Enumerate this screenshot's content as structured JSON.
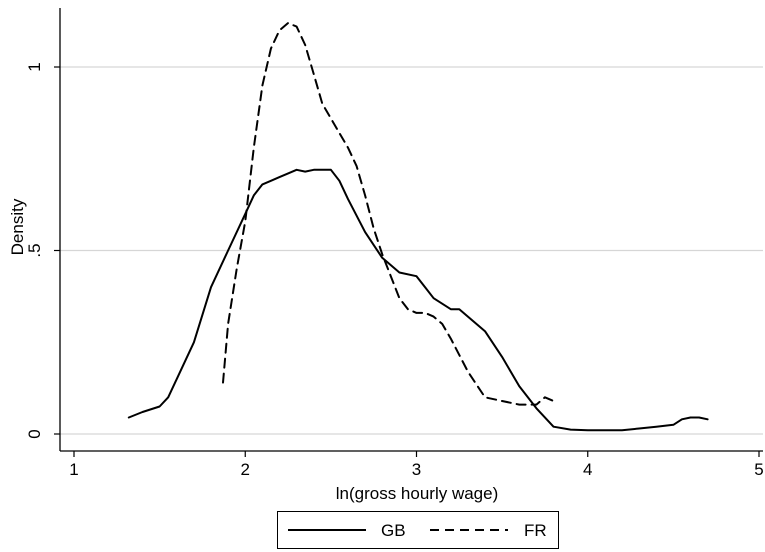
{
  "chart_data": {
    "type": "line",
    "title": "",
    "xlabel": "ln(gross hourly wage)",
    "ylabel": "Density",
    "xlim": [
      1,
      5
    ],
    "ylim": [
      0,
      1.15
    ],
    "xticks": [
      1,
      2,
      3,
      4,
      5
    ],
    "xtick_labels": [
      "1",
      "2",
      "3",
      "4",
      "5"
    ],
    "yticks": [
      0,
      0.5,
      1
    ],
    "ytick_labels": [
      "0",
      ".5",
      "1"
    ],
    "grid": "horizontal",
    "legend_position": "bottom",
    "series": [
      {
        "name": "GB",
        "style": "solid",
        "color": "#000000",
        "x": [
          1.32,
          1.4,
          1.5,
          1.55,
          1.6,
          1.7,
          1.8,
          1.9,
          2.0,
          2.05,
          2.1,
          2.15,
          2.2,
          2.25,
          2.3,
          2.35,
          2.4,
          2.45,
          2.5,
          2.55,
          2.6,
          2.7,
          2.8,
          2.9,
          3.0,
          3.05,
          3.1,
          3.2,
          3.25,
          3.3,
          3.4,
          3.5,
          3.6,
          3.7,
          3.8,
          3.9,
          4.0,
          4.1,
          4.2,
          4.3,
          4.4,
          4.5,
          4.55,
          4.6,
          4.65,
          4.7
        ],
        "y": [
          0.045,
          0.06,
          0.075,
          0.1,
          0.15,
          0.25,
          0.4,
          0.5,
          0.6,
          0.65,
          0.68,
          0.69,
          0.7,
          0.71,
          0.72,
          0.715,
          0.72,
          0.72,
          0.72,
          0.69,
          0.64,
          0.55,
          0.48,
          0.44,
          0.43,
          0.4,
          0.37,
          0.34,
          0.34,
          0.32,
          0.28,
          0.21,
          0.13,
          0.07,
          0.02,
          0.012,
          0.01,
          0.01,
          0.01,
          0.015,
          0.02,
          0.025,
          0.04,
          0.045,
          0.045,
          0.04
        ]
      },
      {
        "name": "FR",
        "style": "dashed",
        "color": "#000000",
        "x": [
          1.87,
          1.9,
          1.95,
          2.0,
          2.05,
          2.1,
          2.15,
          2.2,
          2.25,
          2.3,
          2.35,
          2.4,
          2.45,
          2.5,
          2.55,
          2.6,
          2.65,
          2.7,
          2.75,
          2.8,
          2.85,
          2.9,
          2.95,
          3.0,
          3.05,
          3.1,
          3.15,
          3.2,
          3.3,
          3.4,
          3.5,
          3.6,
          3.7,
          3.75,
          3.8
        ],
        "y": [
          0.14,
          0.3,
          0.45,
          0.58,
          0.78,
          0.95,
          1.05,
          1.1,
          1.12,
          1.11,
          1.06,
          0.98,
          0.9,
          0.86,
          0.82,
          0.78,
          0.73,
          0.65,
          0.56,
          0.49,
          0.43,
          0.37,
          0.34,
          0.33,
          0.33,
          0.32,
          0.3,
          0.26,
          0.17,
          0.1,
          0.09,
          0.08,
          0.08,
          0.1,
          0.09
        ]
      }
    ]
  }
}
